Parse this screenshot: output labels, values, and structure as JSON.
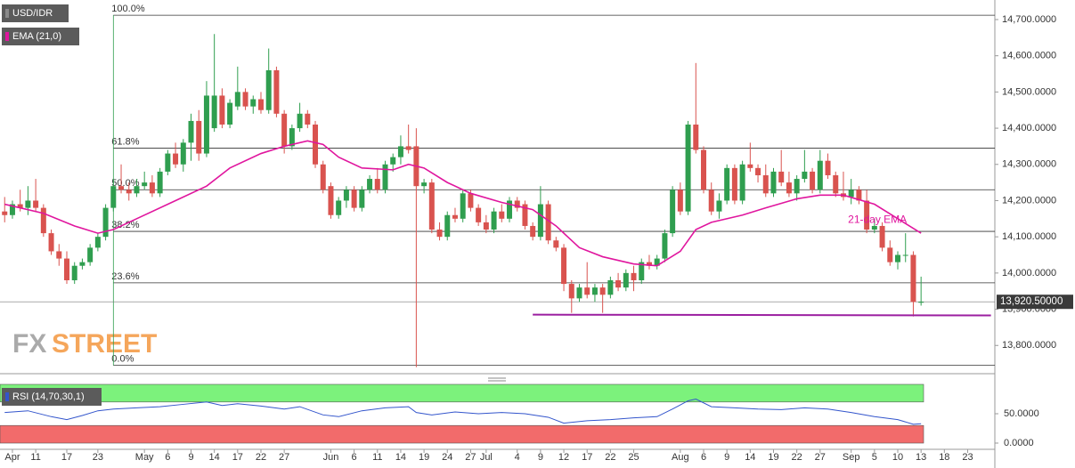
{
  "chart_data": [
    {
      "type": "candlestick",
      "legend": [
        "USD/IDR",
        "EMA (21,0)"
      ],
      "xlim": [
        -0.6,
        127.5
      ],
      "ylim": [
        13722,
        14754
      ],
      "yticks": [
        {
          "value": 13800,
          "label": "13,800.0000"
        },
        {
          "value": 13900,
          "label": "13,900.0000"
        },
        {
          "value": 14000,
          "label": "14,000.0000"
        },
        {
          "value": 14100,
          "label": "14,100.0000"
        },
        {
          "value": 14200,
          "label": "14,200.0000"
        },
        {
          "value": 14300,
          "label": "14,300.0000"
        },
        {
          "value": 14400,
          "label": "14,400.0000"
        },
        {
          "value": 14500,
          "label": "14,500.0000"
        },
        {
          "value": 14600,
          "label": "14,600.0000"
        },
        {
          "value": 14700,
          "label": "14,700.0000"
        }
      ],
      "up_color": "#2f9e4f",
      "down_color": "#d9534f",
      "ohlc": {
        "open": [
          14170,
          14160,
          14190,
          14180,
          14200,
          14180,
          14110,
          14060,
          14040,
          13980,
          14020,
          14030,
          14070,
          14100,
          14180,
          14240,
          14230,
          14220,
          14240,
          14250,
          14220,
          14280,
          14330,
          14300,
          14360,
          14420,
          14330,
          14400,
          14490,
          14410,
          14460,
          14500,
          14460,
          14480,
          14450,
          14560,
          14440,
          14350,
          14400,
          14440,
          14410,
          14300,
          14240,
          14160,
          14200,
          14230,
          14180,
          14230,
          14260,
          14230,
          14300,
          14320,
          14350,
          14350,
          14240,
          14250,
          14120,
          14100,
          14160,
          14150,
          14220,
          14180,
          14140,
          14120,
          14170,
          14150,
          14200,
          14190,
          14130,
          14100,
          14190,
          14090,
          14070,
          13970,
          13930,
          13960,
          13940,
          13960,
          13940,
          13980,
          13960,
          14000,
          13980,
          14030,
          14020,
          14040,
          14110,
          14230,
          14170,
          14410,
          14340,
          14230,
          14170,
          14200,
          14290,
          14200,
          14300,
          14290,
          14270,
          14220,
          14280,
          14250,
          14220,
          14260,
          14280,
          14230,
          14310,
          14270,
          14220,
          14210,
          14230,
          14200,
          14120,
          14130,
          14070,
          14030,
          14050,
          14050,
          13920
        ],
        "high": [
          14210,
          14200,
          14230,
          14240,
          14260,
          14190,
          14120,
          14080,
          14060,
          14030,
          14040,
          14080,
          14110,
          14190,
          14260,
          14300,
          14250,
          14260,
          14280,
          14270,
          14290,
          14340,
          14360,
          14370,
          14440,
          14450,
          14530,
          14660,
          14510,
          14480,
          14570,
          14510,
          14490,
          14500,
          14620,
          14570,
          14450,
          14410,
          14470,
          14450,
          14420,
          14310,
          14250,
          14210,
          14240,
          14240,
          14240,
          14270,
          14290,
          14310,
          14330,
          14380,
          14410,
          14400,
          14260,
          14260,
          14140,
          14170,
          14180,
          14230,
          14230,
          14190,
          14160,
          14180,
          14190,
          14210,
          14210,
          14200,
          14140,
          14240,
          14200,
          14100,
          14080,
          13980,
          13970,
          14030,
          13970,
          13970,
          13990,
          14000,
          14010,
          14020,
          14040,
          14050,
          14050,
          14120,
          14240,
          14250,
          14420,
          14580,
          14350,
          14250,
          14220,
          14300,
          14300,
          14310,
          14360,
          14300,
          14300,
          14290,
          14340,
          14280,
          14270,
          14340,
          14290,
          14340,
          14330,
          14280,
          14280,
          14260,
          14240,
          14230,
          14150,
          14140,
          14090,
          14060,
          14110,
          14060,
          13990
        ],
        "low": [
          14140,
          14150,
          14170,
          14160,
          14170,
          14100,
          14050,
          14020,
          13970,
          13970,
          14010,
          14020,
          14060,
          14090,
          14170,
          14220,
          14200,
          14210,
          14230,
          14210,
          14210,
          14270,
          14290,
          14280,
          14310,
          14310,
          14320,
          14390,
          14400,
          14400,
          14450,
          14450,
          14440,
          14440,
          14440,
          14430,
          14330,
          14340,
          14390,
          14400,
          14290,
          14220,
          14150,
          14150,
          14180,
          14170,
          14170,
          14220,
          14220,
          14220,
          14280,
          14300,
          14330,
          13740,
          14220,
          14110,
          14090,
          14090,
          14140,
          14140,
          14170,
          14130,
          14110,
          14110,
          14140,
          14140,
          14170,
          14120,
          14090,
          14090,
          14080,
          14060,
          13950,
          13890,
          13920,
          13930,
          13920,
          13890,
          13930,
          13950,
          13950,
          13950,
          13970,
          14010,
          14010,
          14030,
          14100,
          14160,
          14160,
          14330,
          14220,
          14160,
          14150,
          14190,
          14190,
          14190,
          14280,
          14250,
          14210,
          14210,
          14240,
          14210,
          14200,
          14250,
          14220,
          14220,
          14260,
          14210,
          14200,
          14190,
          14190,
          14110,
          14110,
          14060,
          14020,
          14010,
          14030,
          13880,
          13910
        ],
        "close": [
          14160,
          14190,
          14180,
          14200,
          14180,
          14110,
          14060,
          14040,
          13980,
          14020,
          14030,
          14070,
          14100,
          14180,
          14240,
          14230,
          14220,
          14240,
          14250,
          14220,
          14280,
          14330,
          14300,
          14360,
          14420,
          14330,
          14490,
          14490,
          14410,
          14470,
          14500,
          14460,
          14480,
          14450,
          14560,
          14440,
          14350,
          14400,
          14440,
          14410,
          14300,
          14230,
          14160,
          14200,
          14230,
          14180,
          14230,
          14260,
          14230,
          14300,
          14320,
          14350,
          14340,
          14240,
          14250,
          14120,
          14100,
          14160,
          14150,
          14220,
          14180,
          14140,
          14120,
          14170,
          14150,
          14200,
          14180,
          14130,
          14100,
          14190,
          14090,
          14070,
          13970,
          13930,
          13960,
          13940,
          13960,
          13940,
          13980,
          13960,
          14000,
          13980,
          14030,
          14020,
          14040,
          14110,
          14230,
          14170,
          14410,
          14340,
          14230,
          14170,
          14200,
          14290,
          14200,
          14300,
          14290,
          14270,
          14220,
          14280,
          14250,
          14220,
          14260,
          14280,
          14230,
          14310,
          14270,
          14220,
          14210,
          14230,
          14200,
          14120,
          14130,
          14070,
          14030,
          14050,
          14050,
          13920,
          13920.5
        ]
      },
      "series": [
        {
          "name": "EMA (21,0)",
          "color": "#e0169e",
          "x": [
            0,
            5,
            9,
            12,
            14,
            17,
            22,
            26,
            29,
            33,
            36,
            39,
            41,
            43,
            46,
            50,
            52,
            54,
            57,
            60,
            64,
            68,
            71,
            74,
            77,
            81,
            84,
            87,
            89,
            91,
            95,
            98,
            102,
            105,
            108,
            112,
            115,
            118
          ],
          "values": [
            14190,
            14165,
            14130,
            14110,
            14120,
            14150,
            14200,
            14240,
            14290,
            14330,
            14350,
            14365,
            14355,
            14320,
            14290,
            14285,
            14300,
            14290,
            14250,
            14220,
            14195,
            14175,
            14130,
            14070,
            14045,
            14025,
            14020,
            14060,
            14120,
            14140,
            14160,
            14180,
            14205,
            14215,
            14215,
            14190,
            14150,
            14110
          ]
        }
      ],
      "ema_annotation": "21-day EMA",
      "fibonacci": {
        "x_start": 14,
        "color": "#333333",
        "levels": [
          {
            "label": "100.0%",
            "value": 14712
          },
          {
            "label": "61.8%",
            "value": 14345
          },
          {
            "label": "50.0%",
            "value": 14230
          },
          {
            "label": "38.2%",
            "value": 14115
          },
          {
            "label": "23.6%",
            "value": 13973
          },
          {
            "label": "0.0%",
            "value": 13745
          }
        ]
      },
      "support_line": {
        "x": [
          68,
          127
        ],
        "values": [
          13885,
          13883
        ],
        "color": "#9b1fa0"
      },
      "last_price": {
        "value": 13920.5,
        "label": "13,920.50000"
      },
      "watermark": [
        "FX",
        "STREET"
      ]
    },
    {
      "type": "rsi",
      "title": "RSI (14,70,30,1)",
      "xlim": [
        -0.6,
        127.5
      ],
      "ylim": [
        0,
        100
      ],
      "yticks": [
        {
          "value": 0,
          "label": "0.0000"
        },
        {
          "value": 50,
          "label": "50.0000"
        }
      ],
      "overbought": 70,
      "oversold": 30,
      "color": "#3355cc",
      "x": [
        0,
        3,
        6,
        8,
        10,
        12,
        14,
        17,
        20,
        23,
        26,
        28,
        30,
        33,
        36,
        38,
        41,
        43,
        46,
        49,
        52,
        53,
        55,
        58,
        61,
        64,
        67,
        70,
        72,
        75,
        78,
        81,
        84,
        86,
        88,
        89,
        91,
        94,
        97,
        100,
        103,
        106,
        109,
        112,
        115,
        117,
        118
      ],
      "values": [
        52,
        55,
        45,
        40,
        47,
        55,
        58,
        60,
        62,
        66,
        70,
        64,
        67,
        63,
        58,
        62,
        48,
        45,
        55,
        60,
        62,
        52,
        48,
        53,
        50,
        52,
        50,
        44,
        34,
        38,
        40,
        43,
        45,
        58,
        72,
        75,
        62,
        60,
        58,
        57,
        60,
        58,
        52,
        45,
        40,
        32,
        33
      ],
      "xticks": [
        {
          "value": 1,
          "label": "Apr"
        },
        {
          "value": 4,
          "label": "11"
        },
        {
          "value": 8,
          "label": "17"
        },
        {
          "value": 12,
          "label": "23"
        },
        {
          "value": 18,
          "label": "May"
        },
        {
          "value": 21,
          "label": "6"
        },
        {
          "value": 24,
          "label": "9"
        },
        {
          "value": 27,
          "label": "14"
        },
        {
          "value": 30,
          "label": "17"
        },
        {
          "value": 33,
          "label": "22"
        },
        {
          "value": 36,
          "label": "27"
        },
        {
          "value": 42,
          "label": "Jun"
        },
        {
          "value": 45,
          "label": "6"
        },
        {
          "value": 48,
          "label": "11"
        },
        {
          "value": 51,
          "label": "14"
        },
        {
          "value": 54,
          "label": "19"
        },
        {
          "value": 57,
          "label": "24"
        },
        {
          "value": 60,
          "label": "27"
        },
        {
          "value": 62,
          "label": "Jul"
        },
        {
          "value": 66,
          "label": "4"
        },
        {
          "value": 69,
          "label": "9"
        },
        {
          "value": 72,
          "label": "12"
        },
        {
          "value": 75,
          "label": "17"
        },
        {
          "value": 78,
          "label": "22"
        },
        {
          "value": 81,
          "label": "25"
        },
        {
          "value": 87,
          "label": "Aug"
        },
        {
          "value": 90,
          "label": "6"
        },
        {
          "value": 93,
          "label": "9"
        },
        {
          "value": 96,
          "label": "14"
        },
        {
          "value": 99,
          "label": "19"
        },
        {
          "value": 102,
          "label": "22"
        },
        {
          "value": 105,
          "label": "27"
        },
        {
          "value": 109,
          "label": "Sep"
        },
        {
          "value": 112,
          "label": "5"
        },
        {
          "value": 115,
          "label": "10"
        },
        {
          "value": 118,
          "label": "13"
        },
        {
          "value": 121,
          "label": "18"
        },
        {
          "value": 124,
          "label": "23"
        }
      ]
    }
  ]
}
